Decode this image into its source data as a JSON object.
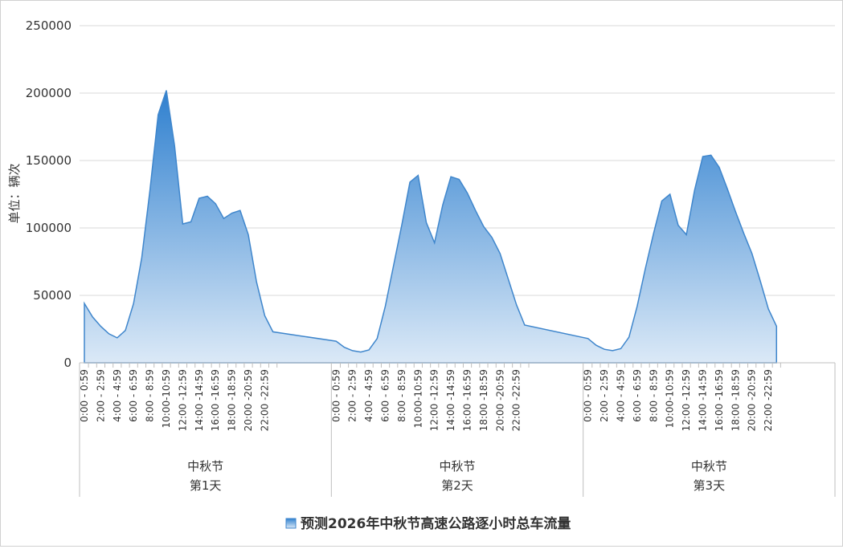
{
  "chart_data": {
    "type": "area",
    "title": "",
    "ylabel": "单位：辆次",
    "xlabel": "",
    "ylim": [
      0,
      250000
    ],
    "yticks": [
      0,
      50000,
      100000,
      150000,
      200000,
      250000
    ],
    "ytick_labels": [
      "0",
      "50000",
      "100000",
      "150000",
      "200000",
      "250000"
    ],
    "grid": true,
    "legend_position": "bottom",
    "fill_color_top": "#2f80cf",
    "fill_color_bottom": "#dbe9f7",
    "line_color": "#3f86cc",
    "hour_tick_labels": [
      "0:00 - 0:59",
      "2:00 - 2:59",
      "4:00 - 4:59",
      "6:00 - 6:59",
      "8:00 - 8:59",
      "10:00-10:59",
      "12:00 -12:59",
      "14:00 -14:59",
      "16:00 -16:59",
      "18:00 -18:59",
      "20:00 -20:59",
      "22:00 -22:59"
    ],
    "groups": [
      {
        "festival": "中秋节",
        "day": "第1天"
      },
      {
        "festival": "中秋节",
        "day": "第2天"
      },
      {
        "festival": "中秋节",
        "day": "第3天"
      }
    ],
    "series": [
      {
        "name": "预测2026年中秋节高速公路逐小时总车流量",
        "values": [
          44000,
          34000,
          27000,
          21500,
          18500,
          24000,
          44000,
          78000,
          128000,
          184000,
          202000,
          161000,
          103000,
          104500,
          122000,
          123500,
          118000,
          107000,
          111000,
          113000,
          95000,
          60000,
          35000,
          23000,
          16000,
          11500,
          9000,
          8000,
          9500,
          18000,
          42000,
          72000,
          102000,
          134000,
          139000,
          104000,
          89000,
          117000,
          138000,
          136000,
          126000,
          113000,
          101000,
          93000,
          81000,
          62000,
          43000,
          28000,
          18000,
          13000,
          10000,
          9000,
          10500,
          19000,
          42000,
          70000,
          96000,
          120000,
          125000,
          102000,
          95000,
          128000,
          153000,
          154000,
          145000,
          129000,
          112000,
          96000,
          81000,
          61000,
          40000,
          27000
        ]
      }
    ]
  }
}
